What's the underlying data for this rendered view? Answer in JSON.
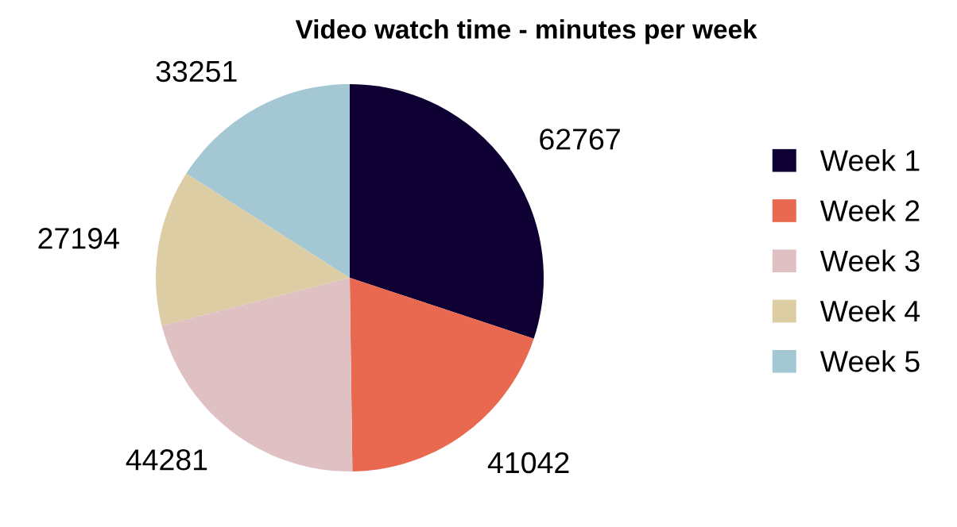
{
  "chart_data": {
    "type": "pie",
    "title": "Video watch time - minutes per week",
    "categories": [
      "Week 1",
      "Week 2",
      "Week 3",
      "Week 4",
      "Week 5"
    ],
    "values": [
      62767,
      41042,
      44281,
      27194,
      33251
    ],
    "colors": [
      "#0f0033",
      "#e8694f",
      "#dfc0c3",
      "#ddcda5",
      "#a3c8d4"
    ],
    "data_labels": true,
    "legend": "right"
  }
}
